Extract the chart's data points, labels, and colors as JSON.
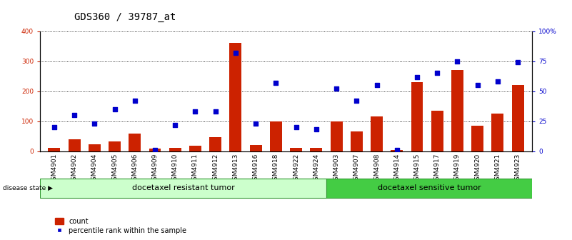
{
  "title": "GDS360 / 39787_at",
  "categories": [
    "GSM4901",
    "GSM4902",
    "GSM4904",
    "GSM4905",
    "GSM4906",
    "GSM4909",
    "GSM4910",
    "GSM4911",
    "GSM4912",
    "GSM4913",
    "GSM4916",
    "GSM4918",
    "GSM4922",
    "GSM4924",
    "GSM4903",
    "GSM4907",
    "GSM4908",
    "GSM4914",
    "GSM4915",
    "GSM4917",
    "GSM4919",
    "GSM4920",
    "GSM4921",
    "GSM4923"
  ],
  "counts": [
    12,
    40,
    22,
    32,
    58,
    8,
    10,
    18,
    46,
    360,
    20,
    100,
    12,
    10,
    100,
    65,
    115,
    5,
    230,
    135,
    270,
    85,
    125,
    220
  ],
  "percentile_ranks": [
    20,
    30,
    23,
    35,
    42,
    1,
    22,
    33,
    33,
    82,
    23,
    57,
    20,
    18,
    52,
    42,
    55,
    1,
    62,
    65,
    75,
    55,
    58,
    74
  ],
  "group1_label": "docetaxel resistant tumor",
  "group2_label": "docetaxel sensitive tumor",
  "group1_count": 14,
  "group2_count": 10,
  "ylim_left": [
    0,
    400
  ],
  "ylim_right": [
    0,
    100
  ],
  "yticks_left": [
    0,
    100,
    200,
    300,
    400
  ],
  "yticks_right": [
    0,
    25,
    50,
    75,
    100
  ],
  "yticklabels_right": [
    "0",
    "25",
    "50",
    "75",
    "100%"
  ],
  "bar_color": "#cc2200",
  "dot_color": "#0000cc",
  "group1_bg": "#ccffcc",
  "group2_bg": "#44cc44",
  "group_edge_color": "#339933",
  "legend_count_label": "count",
  "legend_pct_label": "percentile rank within the sample",
  "disease_state_label": "disease state",
  "title_fontsize": 10,
  "tick_fontsize": 6.5,
  "band_fontsize": 8
}
